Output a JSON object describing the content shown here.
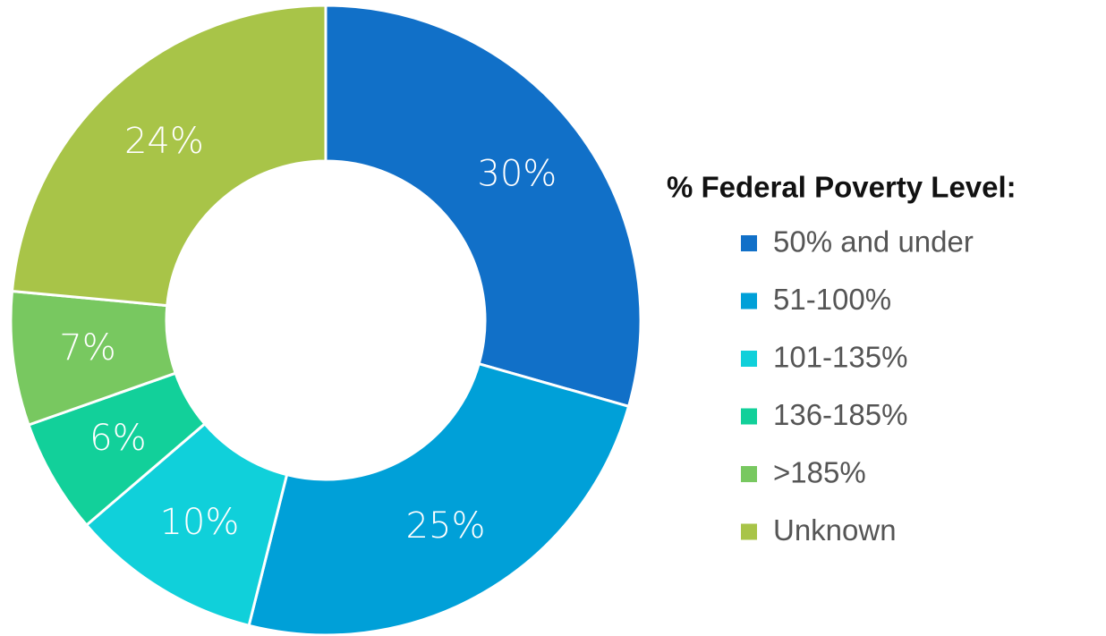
{
  "chart_data": {
    "type": "donut",
    "legend_title": "% Federal Poverty Level:",
    "categories": [
      "50% and under",
      "51-100%",
      "101-135%",
      "136-185%",
      ">185%",
      "Unknown"
    ],
    "values": [
      30,
      25,
      10,
      6,
      7,
      24
    ],
    "value_labels": [
      "30%",
      "25%",
      "10%",
      "6%",
      "7%",
      "24%"
    ],
    "colors": [
      "#1170c8",
      "#00a0d8",
      "#10d0da",
      "#12d09a",
      "#78c860",
      "#a8c448"
    ],
    "legend_position": "right"
  }
}
